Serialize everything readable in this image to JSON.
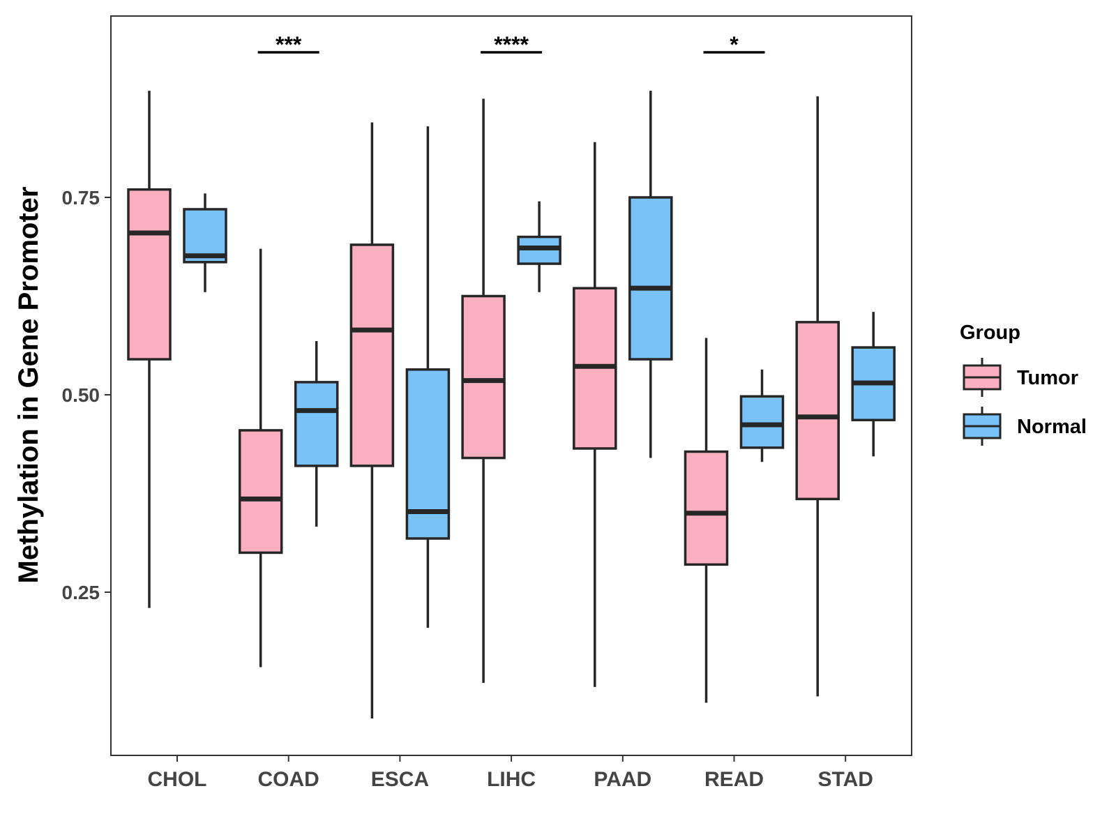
{
  "chart_data": {
    "type": "boxplot",
    "title": "",
    "xlabel": "",
    "ylabel": "Methylation in Gene Promoter",
    "ylim": [
      0.04,
      0.975
    ],
    "yticks": [
      0.25,
      0.5,
      0.75
    ],
    "ytick_labels": [
      "0.25",
      "0.50",
      "0.75"
    ],
    "categories": [
      "CHOL",
      "COAD",
      "ESCA",
      "LIHC",
      "PAAD",
      "READ",
      "STAD"
    ],
    "legend": {
      "title": "Group",
      "position": "right",
      "entries": [
        "Tumor",
        "Normal"
      ]
    },
    "colors": {
      "Tumor": "#FBAFC1",
      "Normal": "#78C2F8",
      "outline": "#262626"
    },
    "series": [
      {
        "name": "Tumor",
        "boxes": [
          {
            "whisker_low": 0.23,
            "q1": 0.545,
            "median": 0.705,
            "q3": 0.76,
            "whisker_high": 0.885
          },
          {
            "whisker_low": 0.155,
            "q1": 0.3,
            "median": 0.368,
            "q3": 0.455,
            "whisker_high": 0.685
          },
          {
            "whisker_low": 0.09,
            "q1": 0.41,
            "median": 0.582,
            "q3": 0.69,
            "whisker_high": 0.845
          },
          {
            "whisker_low": 0.135,
            "q1": 0.42,
            "median": 0.518,
            "q3": 0.625,
            "whisker_high": 0.875
          },
          {
            "whisker_low": 0.13,
            "q1": 0.432,
            "median": 0.536,
            "q3": 0.635,
            "whisker_high": 0.82
          },
          {
            "whisker_low": 0.11,
            "q1": 0.285,
            "median": 0.35,
            "q3": 0.428,
            "whisker_high": 0.572
          },
          {
            "whisker_low": 0.118,
            "q1": 0.368,
            "median": 0.472,
            "q3": 0.592,
            "whisker_high": 0.878
          }
        ]
      },
      {
        "name": "Normal",
        "boxes": [
          {
            "whisker_low": 0.63,
            "q1": 0.668,
            "median": 0.676,
            "q3": 0.735,
            "whisker_high": 0.755
          },
          {
            "whisker_low": 0.333,
            "q1": 0.41,
            "median": 0.48,
            "q3": 0.516,
            "whisker_high": 0.568
          },
          {
            "whisker_low": 0.205,
            "q1": 0.318,
            "median": 0.352,
            "q3": 0.532,
            "whisker_high": 0.84
          },
          {
            "whisker_low": 0.63,
            "q1": 0.666,
            "median": 0.686,
            "q3": 0.7,
            "whisker_high": 0.745
          },
          {
            "whisker_low": 0.42,
            "q1": 0.545,
            "median": 0.635,
            "q3": 0.75,
            "whisker_high": 0.885
          },
          {
            "whisker_low": 0.415,
            "q1": 0.433,
            "median": 0.462,
            "q3": 0.498,
            "whisker_high": 0.532
          },
          {
            "whisker_low": 0.422,
            "q1": 0.468,
            "median": 0.515,
            "q3": 0.56,
            "whisker_high": 0.605
          }
        ]
      }
    ],
    "annotations": [
      {
        "category": "COAD",
        "label": "***"
      },
      {
        "category": "LIHC",
        "label": "****"
      },
      {
        "category": "READ",
        "label": "*"
      }
    ]
  }
}
